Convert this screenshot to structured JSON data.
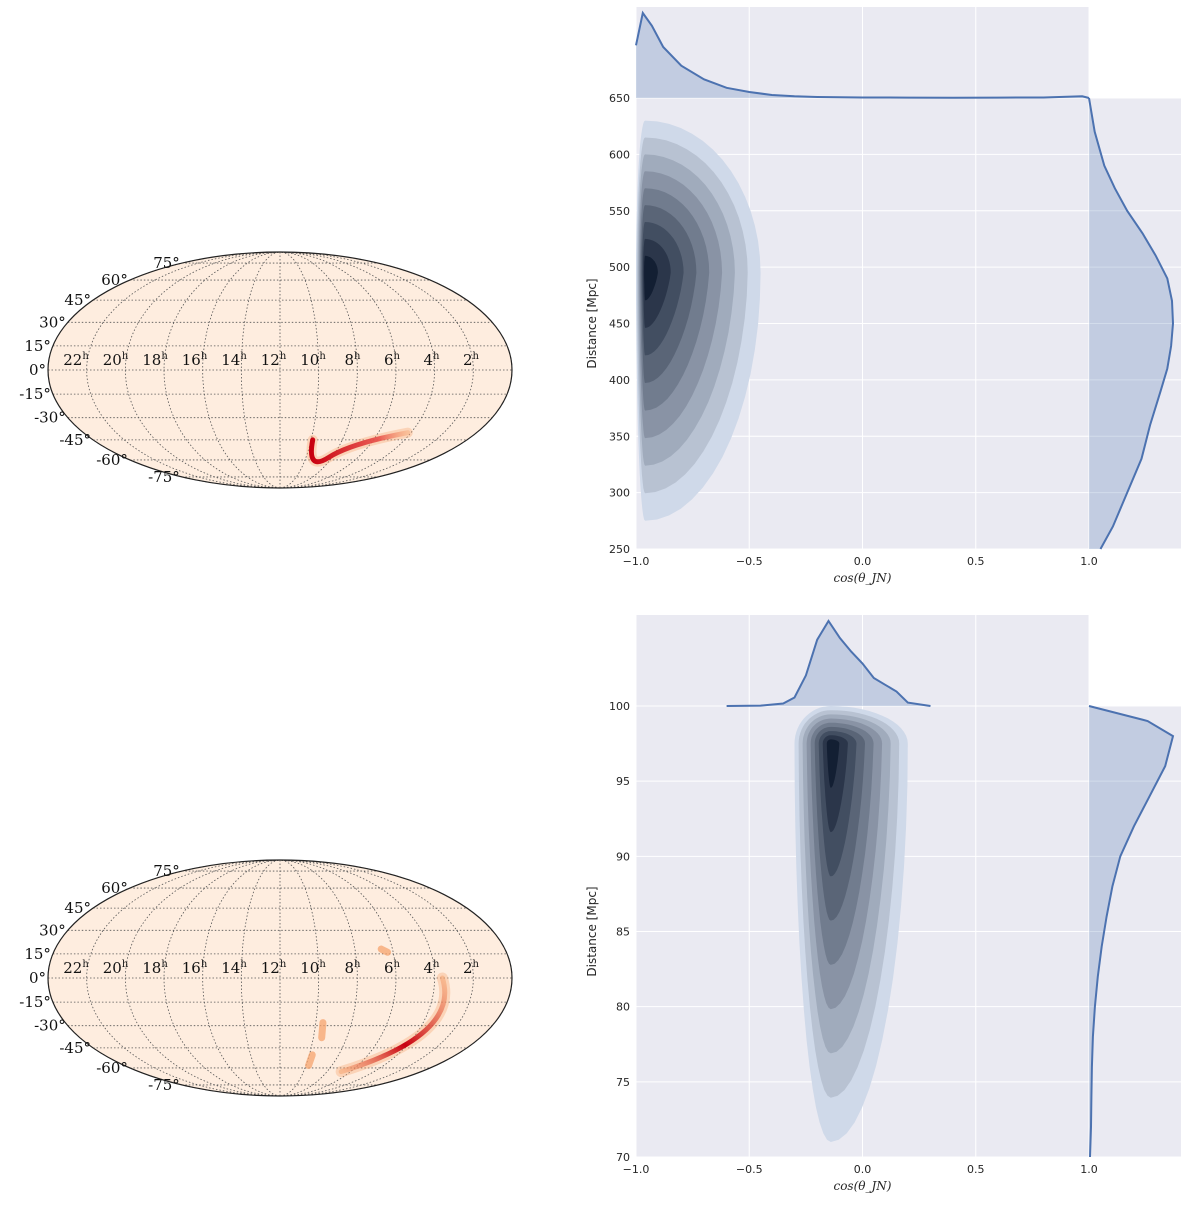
{
  "colors": {
    "sky_fill": "#feeddf",
    "sky_outline": "#222222",
    "sky_grid": "#555555",
    "sky_hot": "#c80010",
    "sky_warm": "#f6a36d",
    "panel_bg": "#eaeaf2",
    "grid": "#ffffff",
    "line": "#4c72b0",
    "fill": "#4c72b0",
    "kde_light": "#cfd9e9",
    "kde_dark": "#131f33"
  },
  "chart_data": [
    {
      "type": "sky-map",
      "projection": "mollweide",
      "ra_labels": [
        "22",
        "20",
        "18",
        "16",
        "14",
        "12",
        "10",
        "8",
        "6",
        "4",
        "2"
      ],
      "ra_unit": "h",
      "dec_labels": [
        "75°",
        "60°",
        "45°",
        "30°",
        "15°",
        "0°",
        "-15°",
        "-30°",
        "-45°",
        "-60°",
        "-75°"
      ],
      "probability_regions": [
        {
          "ra_start_h": 9.9,
          "dec_start": -45,
          "ra_end_h": 4.2,
          "dec_end": -40,
          "dip_dec": -58,
          "intensity": "high"
        }
      ]
    },
    {
      "type": "kde-joint",
      "xlabel": "cos(θ_JN)",
      "ylabel": "Distance [Mpc]",
      "xlim": [
        -1.0,
        1.0
      ],
      "ylim": [
        250,
        650
      ],
      "xticks": [
        "−1.0",
        "−0.5",
        "0.0",
        "0.5",
        "1.0"
      ],
      "yticks": [
        "250",
        "300",
        "350",
        "400",
        "450",
        "500",
        "550",
        "600",
        "650"
      ],
      "joint_peak": {
        "x": -0.96,
        "y": 495
      },
      "joint_extent": {
        "x": [
          -1.0,
          -0.45
        ],
        "y": [
          275,
          630
        ]
      },
      "marginal_x": {
        "x": [
          -1.0,
          -0.97,
          -0.93,
          -0.88,
          -0.8,
          -0.7,
          -0.6,
          -0.5,
          -0.4,
          -0.3,
          -0.2,
          0.0,
          0.2,
          0.4,
          0.6,
          0.8,
          0.97,
          1.0
        ],
        "density": [
          0.62,
          1.0,
          0.85,
          0.6,
          0.38,
          0.22,
          0.12,
          0.07,
          0.035,
          0.02,
          0.012,
          0.006,
          0.005,
          0.004,
          0.005,
          0.006,
          0.02,
          0.0
        ]
      },
      "marginal_y": {
        "y": [
          250,
          270,
          300,
          330,
          360,
          390,
          410,
          430,
          450,
          470,
          490,
          510,
          530,
          550,
          570,
          590,
          620,
          650
        ],
        "density": [
          0.12,
          0.25,
          0.4,
          0.55,
          0.64,
          0.75,
          0.82,
          0.86,
          0.88,
          0.87,
          0.82,
          0.7,
          0.56,
          0.4,
          0.27,
          0.16,
          0.06,
          0.0
        ]
      }
    },
    {
      "type": "sky-map",
      "projection": "mollweide",
      "ra_labels": [
        "22",
        "20",
        "18",
        "16",
        "14",
        "12",
        "10",
        "8",
        "6",
        "4",
        "2"
      ],
      "ra_unit": "h",
      "dec_labels": [
        "75°",
        "60°",
        "45°",
        "30°",
        "15°",
        "0°",
        "-15°",
        "-30°",
        "-45°",
        "-60°",
        "-75°"
      ],
      "probability_regions": [
        {
          "ra_start_h": 6.8,
          "dec_start": -63,
          "ra_end_h": 3.6,
          "dec_end": 0,
          "intensity": "high"
        },
        {
          "ra_start_h": 6.6,
          "dec_start": 18,
          "ra_end_h": 6.3,
          "dec_end": 16,
          "intensity": "low"
        },
        {
          "ra_start_h": 9.6,
          "dec_start": -28,
          "ra_end_h": 9.5,
          "dec_end": -38,
          "intensity": "low"
        },
        {
          "ra_start_h": 9.8,
          "dec_start": -50,
          "ra_end_h": 9.8,
          "dec_end": -58,
          "intensity": "low"
        }
      ]
    },
    {
      "type": "kde-joint",
      "xlabel": "cos(θ_JN)",
      "ylabel": "Distance [Mpc]",
      "xlim": [
        -1.0,
        1.0
      ],
      "ylim": [
        70,
        100
      ],
      "xticks": [
        "−1.0",
        "−0.5",
        "0.0",
        "0.5",
        "1.0"
      ],
      "yticks": [
        "70",
        "75",
        "80",
        "85",
        "90",
        "95",
        "100"
      ],
      "joint_peak": {
        "x": -0.14,
        "y": 97.5
      },
      "joint_extent": {
        "x": [
          -0.3,
          0.2
        ],
        "y": [
          71,
          100
        ]
      },
      "marginal_x": {
        "x": [
          -0.6,
          -0.45,
          -0.35,
          -0.3,
          -0.25,
          -0.2,
          -0.15,
          -0.1,
          -0.05,
          0.0,
          0.05,
          0.1,
          0.15,
          0.2,
          0.3
        ],
        "density": [
          0.0,
          0.005,
          0.03,
          0.1,
          0.36,
          0.78,
          1.0,
          0.8,
          0.64,
          0.5,
          0.33,
          0.25,
          0.17,
          0.04,
          0.0
        ]
      },
      "marginal_y": {
        "y": [
          70,
          72,
          74,
          76,
          78,
          80,
          82,
          84,
          86,
          88,
          90,
          92,
          94,
          96,
          98,
          99,
          100
        ],
        "density": [
          0.01,
          0.02,
          0.025,
          0.03,
          0.04,
          0.06,
          0.09,
          0.13,
          0.18,
          0.24,
          0.32,
          0.46,
          0.62,
          0.78,
          0.86,
          0.6,
          0.0
        ]
      }
    }
  ]
}
